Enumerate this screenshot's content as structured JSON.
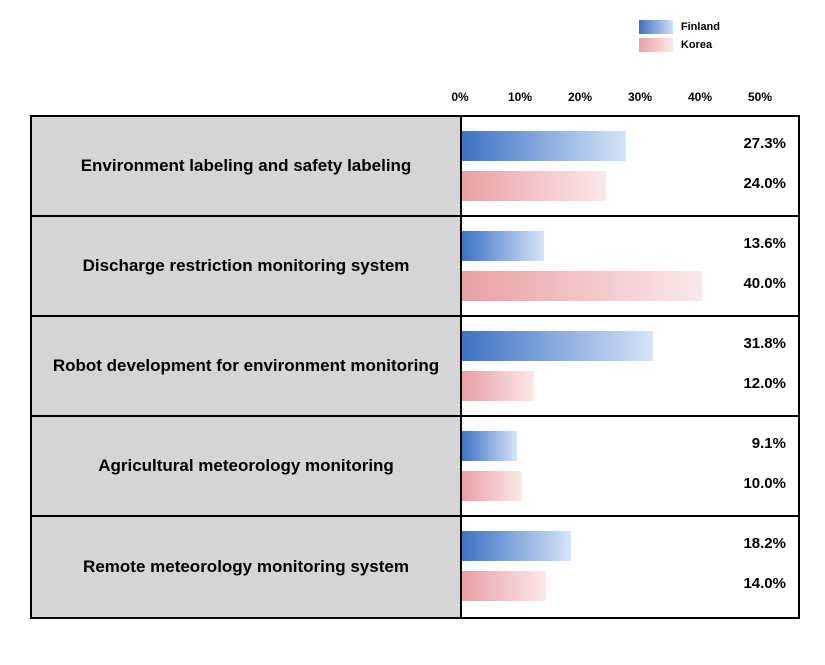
{
  "chart": {
    "type": "bar",
    "xmax": 50,
    "legend": [
      {
        "label": "Finland",
        "color_left": "#3d72c4",
        "color_right": "#cfe0f5"
      },
      {
        "label": "Korea",
        "color_left": "#e8a0a4",
        "color_right": "#fdeaea"
      }
    ],
    "axis_ticks": [
      {
        "label": "0%",
        "pct": 0
      },
      {
        "label": "10%",
        "pct": 10
      },
      {
        "label": "20%",
        "pct": 20
      },
      {
        "label": "30%",
        "pct": 30
      },
      {
        "label": "40%",
        "pct": 40
      },
      {
        "label": "50%",
        "pct": 50
      }
    ],
    "series_colors": {
      "finland_left": "#3d72c4",
      "finland_right": "#d6e4f7",
      "korea_left": "#e8a0a4",
      "korea_right": "#fbe8e9"
    },
    "rows": [
      {
        "label": "Environment labeling and safety labeling",
        "finland": 27.3,
        "korea": 24.0
      },
      {
        "label": "Discharge restriction monitoring system",
        "finland": 13.6,
        "korea": 40.0
      },
      {
        "label": "Robot development for environment monitoring",
        "finland": 31.8,
        "korea": 12.0
      },
      {
        "label": "Agricultural meteorology monitoring",
        "finland": 9.1,
        "korea": 10.0
      },
      {
        "label": "Remote meteorology monitoring system",
        "finland": 18.2,
        "korea": 14.0
      }
    ],
    "label_bg": "#d5d5d5",
    "border_color": "#000000",
    "background": "#ffffff",
    "label_fontsize": 17,
    "value_fontsize": 15,
    "axis_fontsize": 12
  }
}
